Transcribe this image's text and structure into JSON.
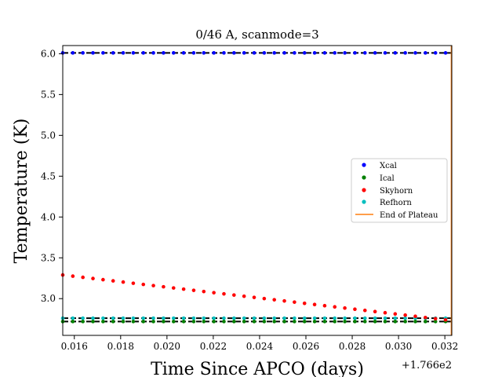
{
  "chart_data": {
    "type": "scatter",
    "title": "0/46 A, scanmode=3",
    "xlabel": "Time Since APCO (days)",
    "ylabel": "Temperature (K)",
    "x_offset_label": "+1.766e2",
    "xlim": [
      0.0155,
      0.0323
    ],
    "ylim": [
      2.55,
      6.1
    ],
    "x_ticks": [
      0.016,
      0.018,
      0.02,
      0.022,
      0.024,
      0.026,
      0.028,
      0.03,
      0.032
    ],
    "x_tick_labels": [
      "0.016",
      "0.018",
      "0.020",
      "0.022",
      "0.024",
      "0.026",
      "0.028",
      "0.030",
      "0.032"
    ],
    "y_ticks": [
      3.0,
      3.5,
      4.0,
      4.5,
      5.0,
      5.5,
      6.0
    ],
    "y_tick_labels": [
      "3.0",
      "3.5",
      "4.0",
      "4.5",
      "5.0",
      "5.5",
      "6.0"
    ],
    "legend_position": "center-right",
    "grid": false,
    "x_sample_start": 0.0155,
    "x_sample_step": 0.000435,
    "series": [
      {
        "name": "Xcal",
        "color": "#0000ff",
        "y_constant": 6.01,
        "ref_line_color": "#000000",
        "ref_line_y": 6.01
      },
      {
        "name": "Ical",
        "color": "#008000",
        "y_constant": 2.72,
        "ref_line_color": "#000000",
        "ref_line_y": 2.72
      },
      {
        "name": "Skyhorn",
        "color": "#ff0000",
        "y_start": 3.29,
        "y_end": 2.74
      },
      {
        "name": "Refhorn",
        "color": "#00bfbf",
        "y_constant": 2.76,
        "ref_line_color": "#000000",
        "ref_line_y": 2.76
      },
      {
        "name": "End of Plateau",
        "color": "#ff7f0e",
        "x": 0.03228
      }
    ]
  }
}
